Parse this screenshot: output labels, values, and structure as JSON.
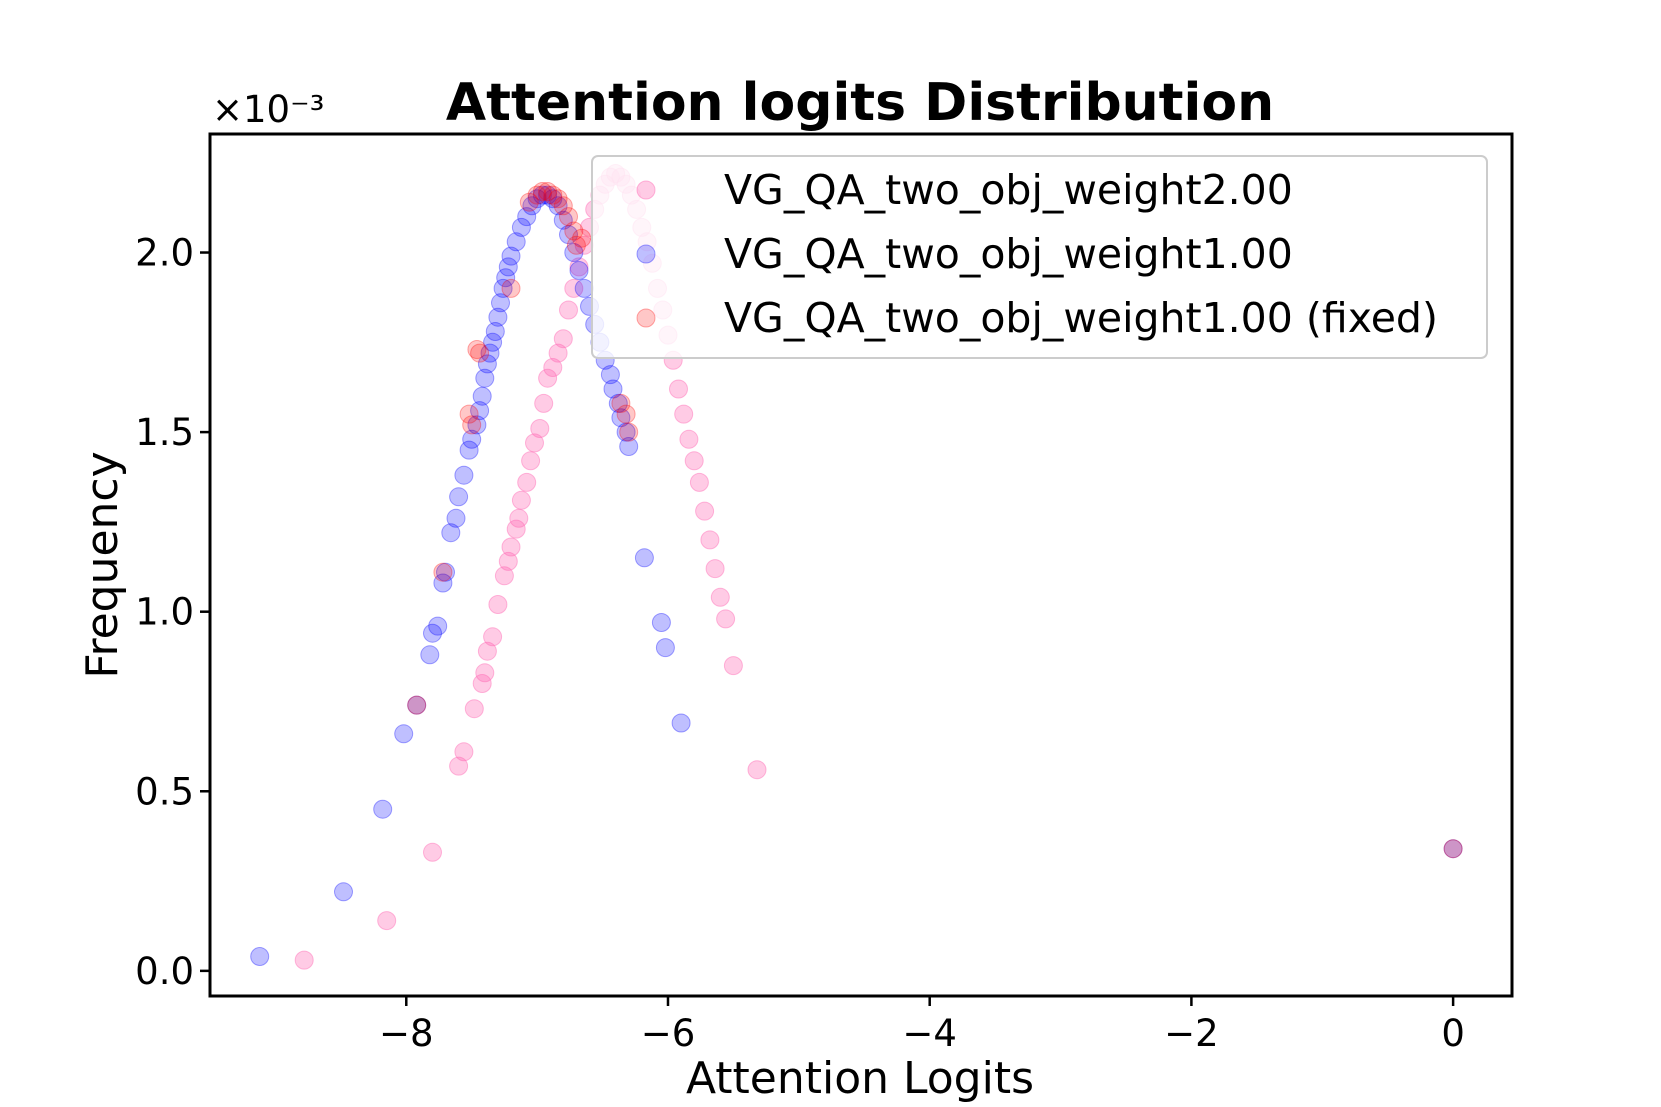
{
  "chart_data": {
    "type": "scatter",
    "title": "Attention logits Distribution",
    "xlabel": "Attention Logits",
    "ylabel": "Frequency",
    "y_scale_label": "×10⁻³",
    "y_scale": "1e-3",
    "xlim": [
      -9.5,
      0.45
    ],
    "ylim": [
      -0.07,
      2.33
    ],
    "xticks": [
      -8,
      -6,
      -4,
      -2,
      0
    ],
    "xtick_labels": [
      "−8",
      "−6",
      "−4",
      "−2",
      "0"
    ],
    "yticks": [
      0.0,
      0.5,
      1.0,
      1.5,
      2.0
    ],
    "ytick_labels": [
      "0.0",
      "0.5",
      "1.0",
      "1.5",
      "2.0"
    ],
    "legend_position": "upper-right",
    "series": [
      {
        "name": "VG_QA_two_obj_weight2.00",
        "color": "#ff69b4",
        "alpha": 0.35,
        "x": [
          -8.78,
          -8.15,
          -7.8,
          -7.6,
          -7.56,
          -7.48,
          -7.42,
          -7.4,
          -7.38,
          -7.34,
          -7.3,
          -7.25,
          -7.22,
          -7.2,
          -7.16,
          -7.14,
          -7.12,
          -7.08,
          -7.05,
          -7.02,
          -6.98,
          -6.95,
          -6.92,
          -6.88,
          -6.84,
          -6.8,
          -6.76,
          -6.72,
          -6.68,
          -6.64,
          -6.6,
          -6.56,
          -6.52,
          -6.48,
          -6.44,
          -6.4,
          -6.36,
          -6.32,
          -6.28,
          -6.24,
          -6.2,
          -6.16,
          -6.12,
          -6.08,
          -6.04,
          -6.0,
          -5.96,
          -5.92,
          -5.88,
          -5.84,
          -5.8,
          -5.76,
          -5.72,
          -5.68,
          -5.64,
          -5.6,
          -5.56,
          -5.5,
          -5.32
        ],
        "y": [
          0.03,
          0.14,
          0.33,
          0.57,
          0.61,
          0.73,
          0.8,
          0.83,
          0.89,
          0.93,
          1.02,
          1.1,
          1.14,
          1.18,
          1.23,
          1.26,
          1.31,
          1.36,
          1.42,
          1.47,
          1.51,
          1.58,
          1.65,
          1.68,
          1.72,
          1.76,
          1.84,
          1.9,
          1.96,
          2.02,
          2.07,
          2.12,
          2.16,
          2.19,
          2.21,
          2.22,
          2.21,
          2.19,
          2.16,
          2.12,
          2.07,
          2.03,
          1.97,
          1.9,
          1.84,
          1.77,
          1.7,
          1.62,
          1.55,
          1.48,
          1.42,
          1.36,
          1.28,
          1.2,
          1.12,
          1.04,
          0.98,
          0.85,
          0.56
        ]
      },
      {
        "name": "VG_QA_two_obj_weight1.00",
        "color": "#0000ff",
        "alpha": 0.25,
        "x": [
          -9.12,
          -8.48,
          -8.18,
          -8.02,
          -7.92,
          -7.82,
          -7.8,
          -7.76,
          -7.72,
          -7.7,
          -7.66,
          -7.62,
          -7.6,
          -7.56,
          -7.52,
          -7.5,
          -7.46,
          -7.44,
          -7.42,
          -7.4,
          -7.38,
          -7.36,
          -7.34,
          -7.32,
          -7.3,
          -7.28,
          -7.26,
          -7.24,
          -7.22,
          -7.2,
          -7.16,
          -7.12,
          -7.08,
          -7.04,
          -7.0,
          -6.96,
          -6.92,
          -6.88,
          -6.84,
          -6.8,
          -6.76,
          -6.72,
          -6.68,
          -6.64,
          -6.6,
          -6.56,
          -6.52,
          -6.48,
          -6.44,
          -6.42,
          -6.38,
          -6.36,
          -6.32,
          -6.3,
          -6.18,
          -6.05,
          -6.02,
          -5.9,
          0.0
        ],
        "y": [
          0.04,
          0.22,
          0.45,
          0.66,
          0.74,
          0.88,
          0.94,
          0.96,
          1.08,
          1.11,
          1.22,
          1.26,
          1.32,
          1.38,
          1.45,
          1.48,
          1.52,
          1.56,
          1.6,
          1.65,
          1.69,
          1.72,
          1.75,
          1.78,
          1.82,
          1.86,
          1.9,
          1.93,
          1.96,
          1.99,
          2.03,
          2.07,
          2.1,
          2.13,
          2.15,
          2.16,
          2.16,
          2.15,
          2.13,
          2.09,
          2.05,
          2.0,
          1.95,
          1.9,
          1.85,
          1.8,
          1.75,
          1.7,
          1.66,
          1.62,
          1.58,
          1.54,
          1.5,
          1.46,
          1.15,
          0.97,
          0.9,
          0.69,
          0.34
        ]
      },
      {
        "name": "VG_QA_two_obj_weight1.00 (fixed)",
        "color": "#ff0000",
        "alpha": 0.22,
        "x": [
          -7.92,
          -7.72,
          -7.52,
          -7.5,
          -7.46,
          -7.44,
          -7.2,
          -7.06,
          -7.0,
          -6.96,
          -6.92,
          -6.88,
          -6.84,
          -6.8,
          -6.76,
          -6.72,
          -6.7,
          -6.66,
          -6.36,
          -6.32,
          -6.3,
          0.0
        ],
        "y": [
          0.74,
          1.11,
          1.55,
          1.52,
          1.73,
          1.72,
          1.9,
          2.14,
          2.16,
          2.17,
          2.17,
          2.16,
          2.15,
          2.13,
          2.1,
          2.06,
          2.02,
          2.04,
          1.58,
          1.55,
          1.5,
          0.34
        ]
      }
    ]
  }
}
